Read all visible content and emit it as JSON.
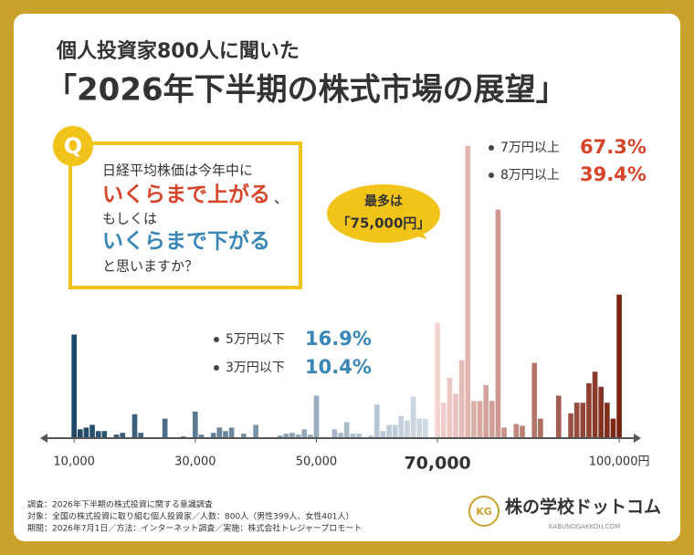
{
  "chart_data": {
    "type": "histogram",
    "title_small": "個人投資家800人に聞いた",
    "title": "「2026年下半期の株式市場の展望」",
    "question": {
      "mark": "Q",
      "lines": [
        "日経平均株価は今年中に",
        "いくらまで上がる",
        "、",
        "もしくは",
        "いくらまで下がる",
        "と思いますか？"
      ]
    },
    "callout": [
      "最多は",
      "「75,000円」"
    ],
    "annotations": [
      {
        "label": "7万円以上",
        "value": 67.3,
        "value_label": "67.3%"
      },
      {
        "label": "8万円以上",
        "value": 39.4,
        "value_label": "39.4%"
      },
      {
        "label": "5万円以下",
        "value": 16.9,
        "value_label": "16.9%"
      },
      {
        "label": "3万円以下",
        "value": 10.4,
        "value_label": "10.4%"
      }
    ],
    "x": [
      10000,
      11000,
      12000,
      13000,
      14000,
      15000,
      16000,
      17000,
      18000,
      19000,
      20000,
      21000,
      22000,
      23000,
      24000,
      25000,
      26000,
      27000,
      28000,
      29000,
      30000,
      31000,
      32000,
      33000,
      34000,
      35000,
      36000,
      37000,
      38000,
      39000,
      40000,
      41000,
      42000,
      43000,
      44000,
      45000,
      46000,
      47000,
      48000,
      49000,
      50000,
      51000,
      52000,
      53000,
      54000,
      55000,
      56000,
      57000,
      58000,
      59000,
      60000,
      61000,
      62000,
      63000,
      64000,
      65000,
      66000,
      67000,
      68000,
      69000,
      70000,
      71000,
      72000,
      73000,
      74000,
      75000,
      76000,
      77000,
      78000,
      79000,
      80000,
      81000,
      82000,
      83000,
      84000,
      85000,
      86000,
      87000,
      88000,
      89000,
      90000,
      91000,
      92000,
      93000,
      94000,
      95000,
      96000,
      97000,
      98000,
      99000,
      100000
    ],
    "values": [
      117,
      10,
      12,
      15,
      8,
      8,
      0,
      4,
      6,
      0,
      27,
      6,
      0,
      0,
      0,
      22,
      0,
      0,
      2,
      0,
      30,
      4,
      0,
      6,
      12,
      8,
      12,
      0,
      5,
      0,
      15,
      0,
      0,
      0,
      3,
      5,
      6,
      4,
      10,
      4,
      48,
      0,
      0,
      10,
      6,
      18,
      5,
      5,
      0,
      3,
      38,
      8,
      15,
      15,
      25,
      20,
      47,
      22,
      22,
      0,
      130,
      40,
      68,
      50,
      88,
      330,
      42,
      42,
      60,
      42,
      258,
      12,
      0,
      16,
      14,
      0,
      85,
      22,
      0,
      0,
      48,
      0,
      28,
      40,
      40,
      62,
      75,
      58,
      40,
      22,
      162
    ],
    "ylim": [
      0,
      340
    ],
    "xlim": [
      5000,
      103000
    ],
    "xticks": [
      {
        "value": 10000,
        "label": "10,000"
      },
      {
        "value": 30000,
        "label": "30,000"
      },
      {
        "value": 50000,
        "label": "50,000"
      },
      {
        "value": 70000,
        "label": "70,000"
      },
      {
        "value": 100000,
        "label": "100,000円"
      }
    ],
    "emphasis_tick": 3,
    "colors": [
      "#1d4766",
      "#d6dfe8",
      "#f5d3cf",
      "#7a2311"
    ],
    "footer": [
      "調査：2026年下半期の株式投資に関する意識調査",
      "対象：全国の株式投資に取り組む個人投資家／人数：800人（男性399人、女性401人）",
      "期間：2026年7月1日／方法：インターネット調査／実施：株式会社トレジャープロモート"
    ],
    "logo": {
      "name": "株の学校ドットコム",
      "url": "KABUNOGAKKOU.COM",
      "mark": "KG"
    }
  }
}
